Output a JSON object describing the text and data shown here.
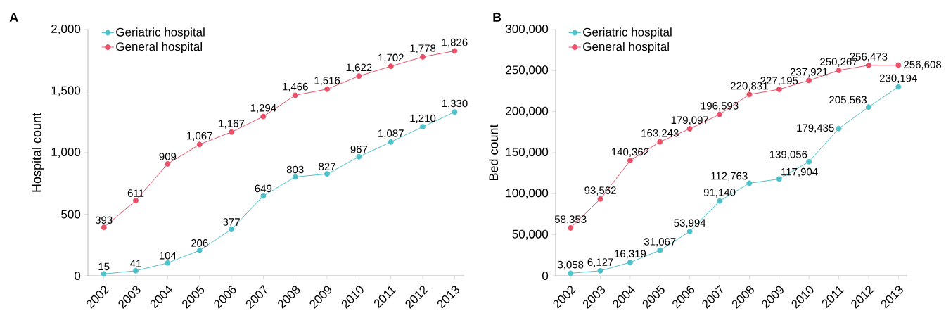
{
  "chart_data": [
    {
      "type": "line",
      "title": "A",
      "ylabel": "Hospital count",
      "categories": [
        "2002",
        "2003",
        "2004",
        "2005",
        "2006",
        "2007",
        "2008",
        "2009",
        "2010",
        "2011",
        "2012",
        "2013"
      ],
      "series": [
        {
          "name": "Geriatric hospital",
          "color": "#4fc1c9",
          "values": [
            15,
            41,
            104,
            206,
            377,
            649,
            803,
            827,
            967,
            1087,
            1210,
            1330
          ],
          "value_labels": [
            "15",
            "41",
            "104",
            "206",
            "377",
            "649",
            "803",
            "827",
            "967",
            "1,087",
            "1,210",
            "1,330"
          ]
        },
        {
          "name": "General hospital",
          "color": "#e8506a",
          "values": [
            393,
            611,
            909,
            1067,
            1167,
            1294,
            1466,
            1516,
            1622,
            1702,
            1778,
            1826
          ],
          "value_labels": [
            "393",
            "611",
            "909",
            "1,067",
            "1,167",
            "1,294",
            "1,466",
            "1,516",
            "1,622",
            "1,702",
            "1,778",
            "1,826"
          ]
        }
      ],
      "ylim": [
        0,
        2000
      ],
      "yticks": [
        0,
        500,
        {
          "value": 1000,
          "label": "1,000"
        },
        {
          "value": 1500,
          "label": "1,500"
        },
        {
          "value": 2000,
          "label": "2,000"
        }
      ],
      "marker": "circle",
      "line_style": "solid",
      "legend": "top left",
      "grid": false
    },
    {
      "type": "line",
      "title": "B",
      "ylabel": "Bed count",
      "categories": [
        "2002",
        "2003",
        "2004",
        "2005",
        "2006",
        "2007",
        "2008",
        "2009",
        "2010",
        "2011",
        "2012",
        "2013"
      ],
      "series": [
        {
          "name": "Geriatric hospital",
          "color": "#4fc1c9",
          "values": [
            3058,
            6127,
            16319,
            31067,
            53994,
            91140,
            112763,
            117904,
            139056,
            179435,
            205563,
            230194
          ],
          "value_labels": [
            "3,058",
            "6,127",
            "16,319",
            "31,067",
            "53,994",
            "91,140",
            "112,763",
            "117,904",
            "139,056",
            "179,435",
            "205,563",
            "230,194"
          ]
        },
        {
          "name": "General hospital",
          "color": "#e8506a",
          "values": [
            58353,
            93562,
            140362,
            163243,
            179097,
            196593,
            220831,
            227195,
            237921,
            250267,
            256473,
            256608
          ],
          "value_labels": [
            "58,353",
            "93,562",
            "140,362",
            "163,243",
            "179,097",
            "196,593",
            "220,831",
            "227,195",
            "237,921",
            "250,267",
            "256,473",
            "256,608"
          ]
        }
      ],
      "ylim": [
        0,
        300000
      ],
      "yticks": [
        0,
        {
          "value": 50000,
          "label": "50,000"
        },
        {
          "value": 100000,
          "label": "100,000"
        },
        {
          "value": 150000,
          "label": "150,000"
        },
        {
          "value": 200000,
          "label": "200,000"
        },
        {
          "value": 250000,
          "label": "250,000"
        },
        {
          "value": 300000,
          "label": "300,000"
        }
      ],
      "marker": "circle",
      "line_style": "solid",
      "legend": "top left",
      "grid": false
    }
  ]
}
